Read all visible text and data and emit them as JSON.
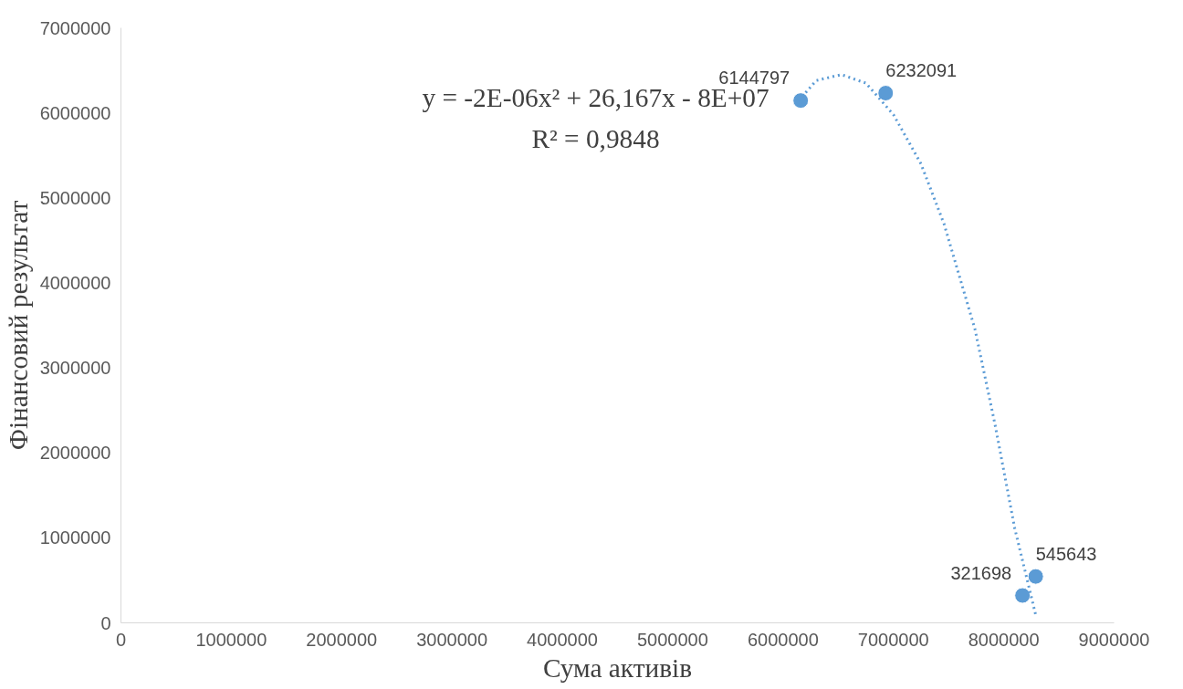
{
  "chart_data": {
    "type": "scatter",
    "xlabel": "Сума активів",
    "ylabel": "Фінансовий результат",
    "annotations": [
      "y = -2E-06x² + 26,167x - 8E+07",
      "R² = 0,9848"
    ],
    "xlim": [
      0,
      9000000
    ],
    "xticks": [
      0,
      1000000,
      2000000,
      3000000,
      4000000,
      5000000,
      6000000,
      7000000,
      8000000,
      9000000
    ],
    "ylim": [
      0,
      7000000
    ],
    "yticks": [
      0,
      1000000,
      2000000,
      3000000,
      4000000,
      5000000,
      6000000,
      7000000
    ],
    "grid": false,
    "series": [
      {
        "marker": "circle",
        "color": "#5b9bd5",
        "x": [
          6160000,
          6930000,
          8170000,
          8290000
        ],
        "values": [
          6144797,
          6232091,
          321698,
          545643
        ],
        "value_labels": [
          "6144797",
          "6232091",
          "321698",
          "545643"
        ]
      },
      {
        "type": "line",
        "line_style": "dotted",
        "color": "#5b9bd5",
        "x": [
          6140000,
          6300000,
          6530000,
          6750000,
          7000000,
          7250000,
          7460000,
          7740000,
          7920000,
          8100000,
          8290000
        ],
        "values": [
          6140000,
          6380000,
          6450000,
          6350000,
          5980000,
          5400000,
          4690000,
          3450000,
          2340000,
          1110000,
          90000
        ]
      }
    ]
  }
}
